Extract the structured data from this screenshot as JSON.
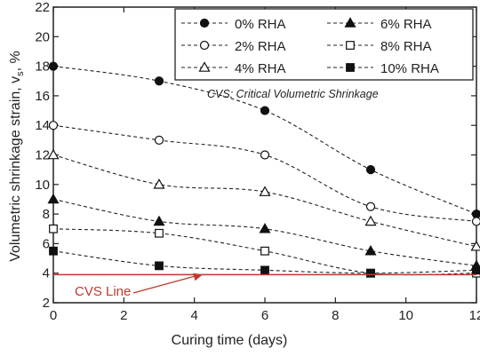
{
  "chart_data": {
    "type": "line",
    "xlabel": "Curing time (days)",
    "ylabel": "Volumetric shrinkage strain, v",
    "ylabel_subscript": "s",
    "ylabel_unit": ", %",
    "xlim": [
      0,
      12
    ],
    "ylim": [
      2,
      22
    ],
    "x_ticks": [
      0,
      2,
      4,
      6,
      8,
      10,
      12
    ],
    "y_ticks": [
      2,
      4,
      6,
      8,
      10,
      12,
      14,
      16,
      18,
      20,
      22
    ],
    "grid": false,
    "legend_position": "top-right",
    "annotation": "CVS: Critical Volumetric Shrinkage",
    "reference_line": {
      "label": "CVS Line",
      "y": 3.9,
      "color": "#c0392b"
    },
    "series": [
      {
        "name": "0% RHA",
        "marker": "circle-filled",
        "x": [
          0,
          3,
          6,
          9,
          12
        ],
        "y": [
          18.0,
          17.0,
          15.0,
          11.0,
          8.0
        ]
      },
      {
        "name": "2% RHA",
        "marker": "circle-open",
        "x": [
          0,
          3,
          6,
          9,
          12
        ],
        "y": [
          14.0,
          13.0,
          12.0,
          8.5,
          7.5
        ]
      },
      {
        "name": "4% RHA",
        "marker": "triangle-open",
        "x": [
          0,
          3,
          6,
          9,
          12
        ],
        "y": [
          12.0,
          10.0,
          9.5,
          7.5,
          5.8
        ]
      },
      {
        "name": "6% RHA",
        "marker": "triangle-filled",
        "x": [
          0,
          3,
          6,
          9,
          12
        ],
        "y": [
          9.0,
          7.5,
          7.0,
          5.5,
          4.5
        ]
      },
      {
        "name": "8% RHA",
        "marker": "square-open",
        "x": [
          0,
          3,
          6,
          9,
          12
        ],
        "y": [
          7.0,
          6.7,
          5.5,
          4.0,
          4.0
        ]
      },
      {
        "name": "10% RHA",
        "marker": "square-filled",
        "x": [
          0,
          3,
          6,
          9,
          12
        ],
        "y": [
          5.5,
          4.5,
          4.2,
          4.0,
          4.2
        ]
      }
    ]
  }
}
